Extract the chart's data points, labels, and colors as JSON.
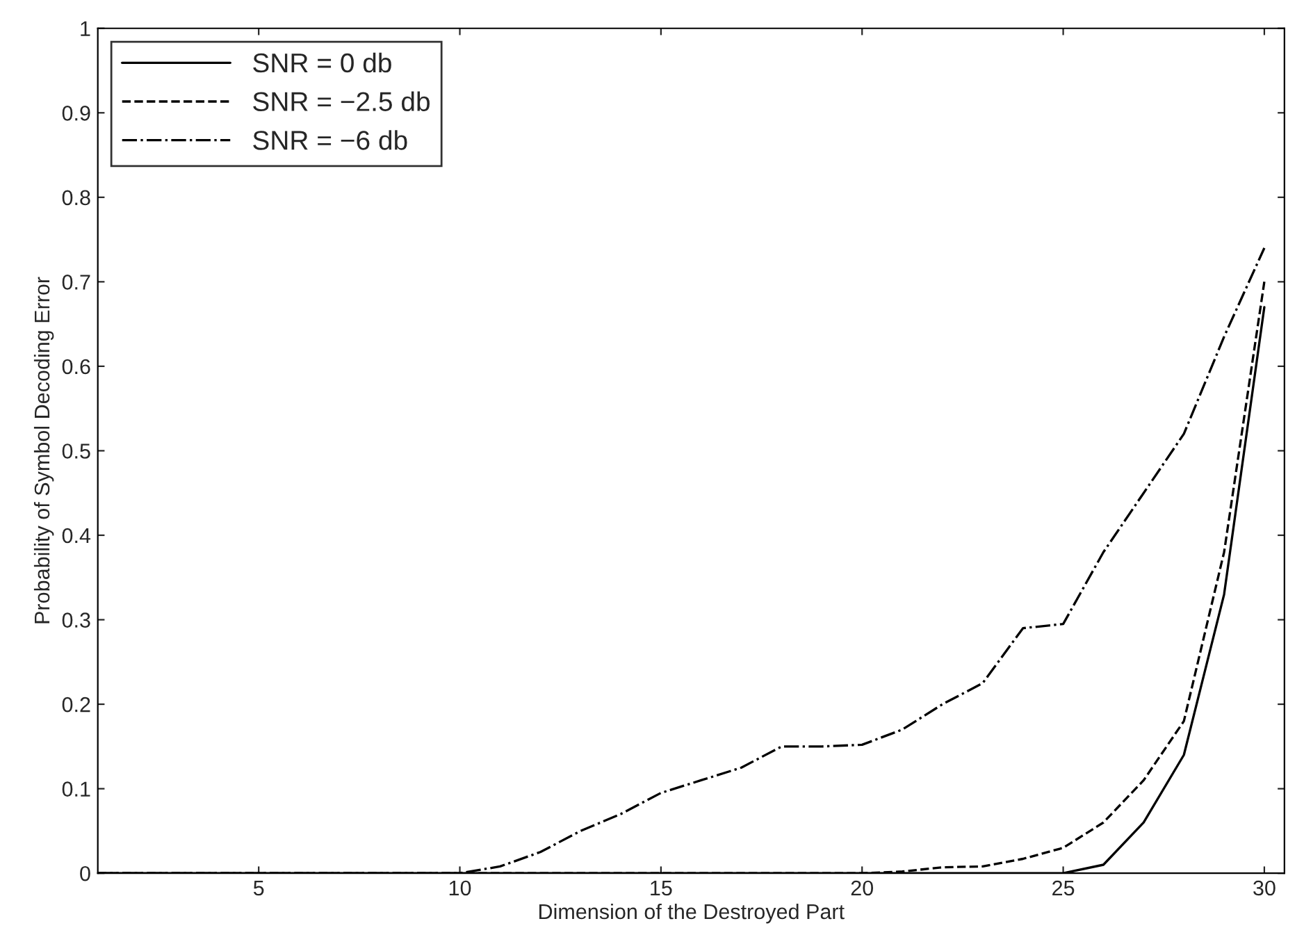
{
  "chart_data": {
    "type": "line",
    "xlabel": "Dimension of the Destroyed Part",
    "ylabel": "Probability of Symbol Decoding Error",
    "x": [
      1,
      2,
      3,
      4,
      5,
      6,
      7,
      8,
      9,
      10,
      11,
      12,
      13,
      14,
      15,
      16,
      17,
      18,
      19,
      20,
      21,
      22,
      23,
      24,
      25,
      26,
      27,
      28,
      29,
      30
    ],
    "series": [
      {
        "name": "SNR = 0 db",
        "color": "#000000",
        "line_style": "solid",
        "values": [
          0,
          0,
          0,
          0,
          0,
          0,
          0,
          0,
          0,
          0,
          0,
          0,
          0,
          0,
          0,
          0,
          0,
          0,
          0,
          0,
          0,
          0,
          0,
          0,
          0,
          0.01,
          0.06,
          0.14,
          0.33,
          0.67
        ]
      },
      {
        "name": "SNR = −2.5 db",
        "color": "#000000",
        "line_style": "dashed",
        "values": [
          0,
          0,
          0,
          0,
          0,
          0,
          0,
          0,
          0,
          0,
          0,
          0,
          0,
          0,
          0,
          0,
          0,
          0,
          0,
          0,
          0.002,
          0.007,
          0.008,
          0.017,
          0.03,
          0.06,
          0.11,
          0.18,
          0.38,
          0.7
        ]
      },
      {
        "name": "SNR = −6 db",
        "color": "#000000",
        "line_style": "dashdot",
        "values": [
          0,
          0,
          0,
          0,
          0,
          0,
          0,
          0,
          0,
          0,
          0.008,
          0.025,
          0.05,
          0.07,
          0.095,
          0.11,
          0.125,
          0.15,
          0.15,
          0.152,
          0.17,
          0.2,
          0.225,
          0.29,
          0.295,
          0.38,
          0.45,
          0.52,
          0.635,
          0.74
        ]
      }
    ],
    "xlim": [
      1,
      30.5
    ],
    "xticks": [
      5,
      10,
      15,
      20,
      25,
      30
    ],
    "ylim": [
      0,
      1
    ],
    "yticks": [
      0,
      0.1,
      0.2,
      0.3,
      0.4,
      0.5,
      0.6,
      0.7,
      0.8,
      0.9,
      1
    ],
    "grid": false,
    "legend": "top left"
  }
}
